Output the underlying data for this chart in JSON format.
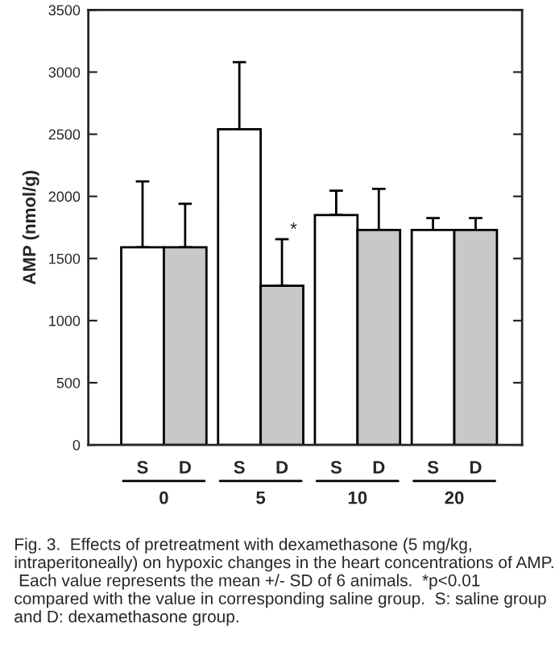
{
  "chart_data": {
    "type": "bar",
    "ylabel": "AMP (nmol/g)",
    "categories": [
      "0",
      "5",
      "10",
      "20"
    ],
    "series": [
      {
        "name": "S",
        "color": "#ffffff",
        "values": [
          1590,
          2540,
          1850,
          1730
        ],
        "errors": [
          530,
          540,
          195,
          95
        ]
      },
      {
        "name": "D",
        "color": "#c8c8c8",
        "values": [
          1590,
          1280,
          1730,
          1730
        ],
        "errors": [
          350,
          375,
          330,
          95
        ]
      }
    ],
    "ylim": [
      0,
      3500
    ],
    "yticks": [
      0,
      500,
      1000,
      1500,
      2000,
      2500,
      3000,
      3500
    ],
    "grid": false,
    "legend": false,
    "annotations": [
      {
        "text": "*",
        "x": "5",
        "y": 1660
      },
      "Fig. 3.  Effects of pretreatment with dexamethasone (5 mg/kg, intraperitoneally) on hypoxic changes in the heart concentrations of AMP.  Each value represents the mean +/- SD of 6 animals.  *p<0.01 compared with the value in corresponding saline group.  S: saline group and D: dexamethasone group."
    ]
  }
}
